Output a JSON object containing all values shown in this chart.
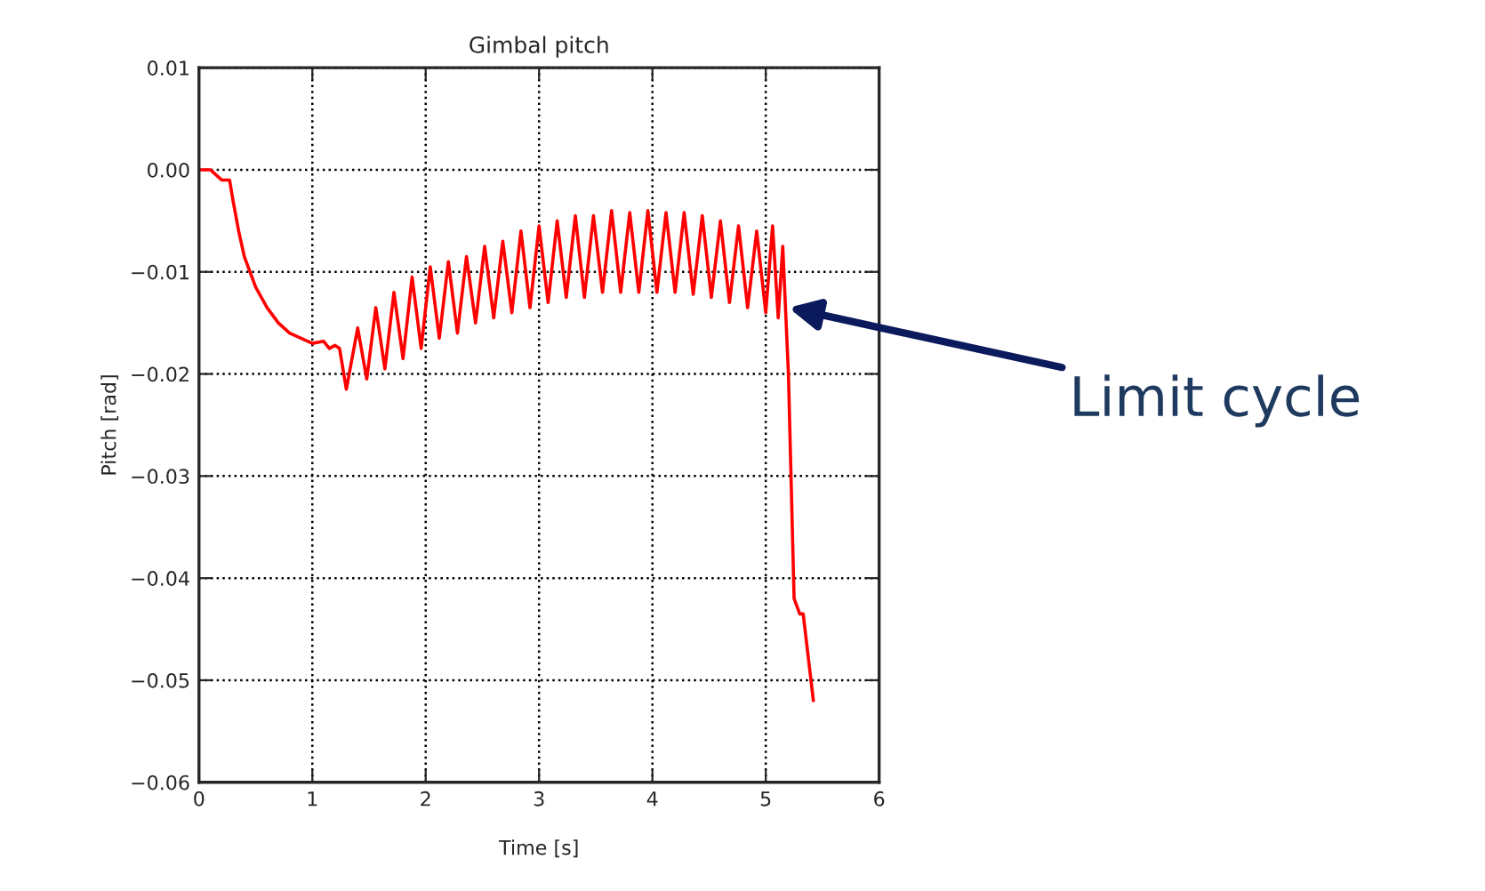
{
  "chart_data": {
    "type": "line",
    "title": "Gimbal pitch",
    "xlabel": "Time [s]",
    "ylabel": "Pitch [rad]",
    "xlim": [
      0,
      6
    ],
    "xticks": [
      0,
      1,
      2,
      3,
      4,
      5,
      6
    ],
    "ylim": [
      -0.06,
      0.01
    ],
    "yticks": [
      {
        "value": -0.06,
        "label": "−0.06"
      },
      {
        "value": -0.05,
        "label": "−0.05"
      },
      {
        "value": -0.04,
        "label": "−0.04"
      },
      {
        "value": -0.03,
        "label": "−0.03"
      },
      {
        "value": -0.02,
        "label": "−0.02"
      },
      {
        "value": -0.01,
        "label": "−0.01"
      },
      {
        "value": 0.0,
        "label": "0.00"
      },
      {
        "value": 0.01,
        "label": "0.01"
      }
    ],
    "grid": true,
    "line_style": "solid",
    "marker": "none",
    "annotations": [
      {
        "text": "Limit cycle",
        "x": 5.2,
        "y": -0.0135
      }
    ],
    "series": [
      {
        "color": "#ff0000",
        "x": [
          0,
          0.1,
          0.15,
          0.2,
          0.27,
          0.3,
          0.35,
          0.4,
          0.5,
          0.6,
          0.7,
          0.8,
          0.9,
          1.0,
          1.1,
          1.15,
          1.2,
          1.24,
          1.3,
          1.4,
          1.48,
          1.56,
          1.64,
          1.72,
          1.8,
          1.88,
          1.96,
          2.04,
          2.12,
          2.2,
          2.28,
          2.36,
          2.44,
          2.52,
          2.6,
          2.68,
          2.76,
          2.84,
          2.92,
          3.0,
          3.08,
          3.16,
          3.24,
          3.32,
          3.4,
          3.48,
          3.56,
          3.64,
          3.72,
          3.8,
          3.88,
          3.96,
          4.04,
          4.12,
          4.2,
          4.28,
          4.36,
          4.44,
          4.52,
          4.6,
          4.68,
          4.76,
          4.84,
          4.92,
          5.0,
          5.06,
          5.11,
          5.15,
          5.2,
          5.25,
          5.3,
          5.33,
          5.42
        ],
        "values": [
          0.0,
          0.0,
          -0.0005,
          -0.001,
          -0.001,
          -0.003,
          -0.006,
          -0.0085,
          -0.0115,
          -0.0135,
          -0.015,
          -0.016,
          -0.0165,
          -0.017,
          -0.0168,
          -0.0175,
          -0.0172,
          -0.0175,
          -0.0215,
          -0.0155,
          -0.0205,
          -0.0135,
          -0.0195,
          -0.012,
          -0.0185,
          -0.0105,
          -0.0175,
          -0.0095,
          -0.0165,
          -0.009,
          -0.016,
          -0.0085,
          -0.015,
          -0.0075,
          -0.0145,
          -0.007,
          -0.014,
          -0.006,
          -0.0135,
          -0.0055,
          -0.013,
          -0.005,
          -0.0125,
          -0.0045,
          -0.0125,
          -0.0045,
          -0.012,
          -0.004,
          -0.012,
          -0.0042,
          -0.012,
          -0.004,
          -0.012,
          -0.0042,
          -0.012,
          -0.0042,
          -0.0122,
          -0.0045,
          -0.0125,
          -0.005,
          -0.013,
          -0.0055,
          -0.0135,
          -0.006,
          -0.014,
          -0.0055,
          -0.0145,
          -0.0075,
          -0.02,
          -0.042,
          -0.0435,
          -0.0435,
          -0.052
        ]
      }
    ]
  }
}
